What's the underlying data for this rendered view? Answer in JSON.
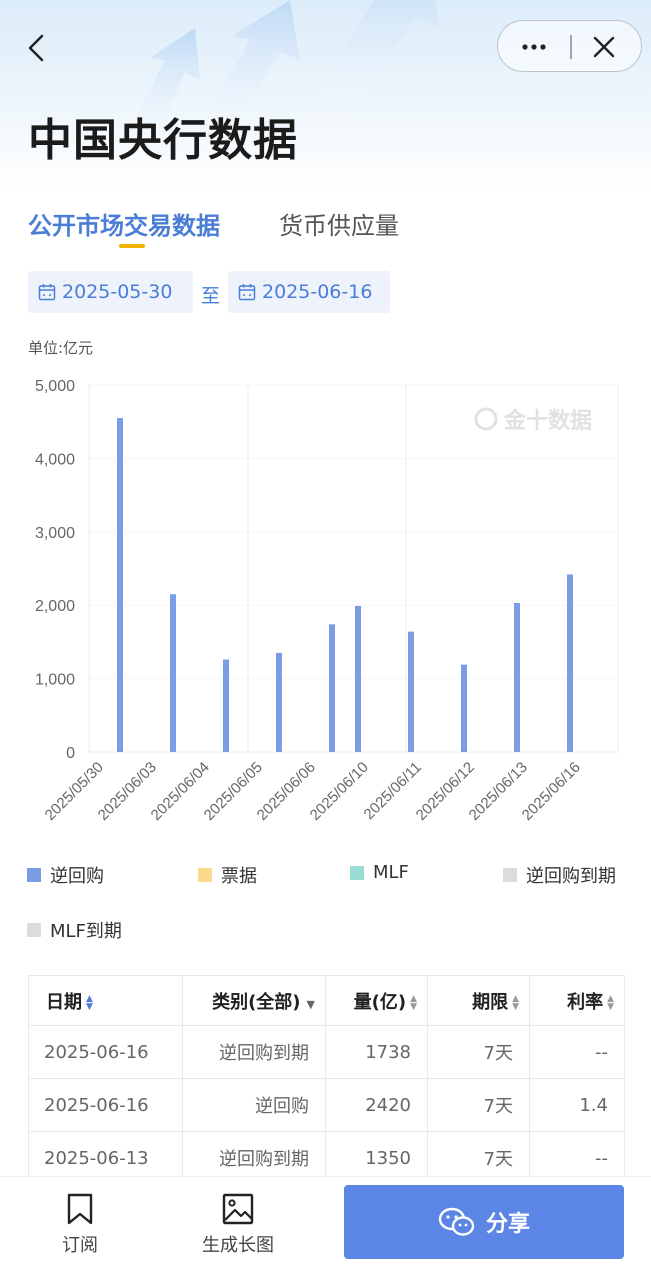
{
  "header": {
    "title": "中国央行数据"
  },
  "tabs": [
    {
      "label": "公开市场交易数据",
      "active": true
    },
    {
      "label": "货币供应量",
      "active": false
    }
  ],
  "date_range": {
    "start": "2025-05-30",
    "separator": "至",
    "end": "2025-06-16"
  },
  "unit_label": "单位:亿元",
  "watermark": "金十数据",
  "chart_data": {
    "type": "bar",
    "categories": [
      "2025/05/30",
      "2025/06/03",
      "2025/06/04",
      "2025/06/05",
      "2025/06/06",
      "2025/06/10",
      "2025/06/11",
      "2025/06/12",
      "2025/06/13",
      "2025/06/16"
    ],
    "series": [
      {
        "name": "逆回购",
        "color": "#7b9de6",
        "values": [
          4550,
          2150,
          1260,
          1350,
          1740,
          1990,
          1640,
          1190,
          2030,
          2420
        ]
      },
      {
        "name": "票据",
        "color": "#f9d98c",
        "values": [
          null,
          null,
          null,
          null,
          null,
          null,
          null,
          null,
          null,
          null
        ]
      },
      {
        "name": "MLF",
        "color": "#98dcd4",
        "values": [
          null,
          null,
          null,
          null,
          null,
          null,
          null,
          null,
          null,
          null
        ]
      },
      {
        "name": "逆回购到期",
        "color": "#dcdcdc",
        "values": [
          null,
          null,
          null,
          null,
          null,
          null,
          null,
          null,
          null,
          null
        ]
      },
      {
        "name": "MLF到期",
        "color": "#dcdcdc",
        "values": [
          null,
          null,
          null,
          null,
          null,
          null,
          null,
          null,
          null,
          null
        ]
      }
    ],
    "yticks": [
      "0",
      "1,000",
      "2,000",
      "3,000",
      "4,000",
      "5,000"
    ],
    "ylim": [
      0,
      5000
    ],
    "grid": true,
    "legend_position": "bottom"
  },
  "table": {
    "headers": [
      "日期",
      "类别(全部)",
      "量(亿)",
      "期限",
      "利率"
    ],
    "rows": [
      [
        "2025-06-16",
        "逆回购到期",
        "1738",
        "7天",
        "--"
      ],
      [
        "2025-06-16",
        "逆回购",
        "2420",
        "7天",
        "1.4"
      ],
      [
        "2025-06-13",
        "逆回购到期",
        "1350",
        "7天",
        "--"
      ]
    ]
  },
  "bottom_bar": {
    "subscribe": "订阅",
    "generate_image": "生成长图",
    "share": "分享"
  },
  "colors": {
    "accent": "#4a7dd6",
    "bar": "#7b9de6",
    "share_button": "#5b86e5",
    "tab_indicator": "#f0b400"
  }
}
